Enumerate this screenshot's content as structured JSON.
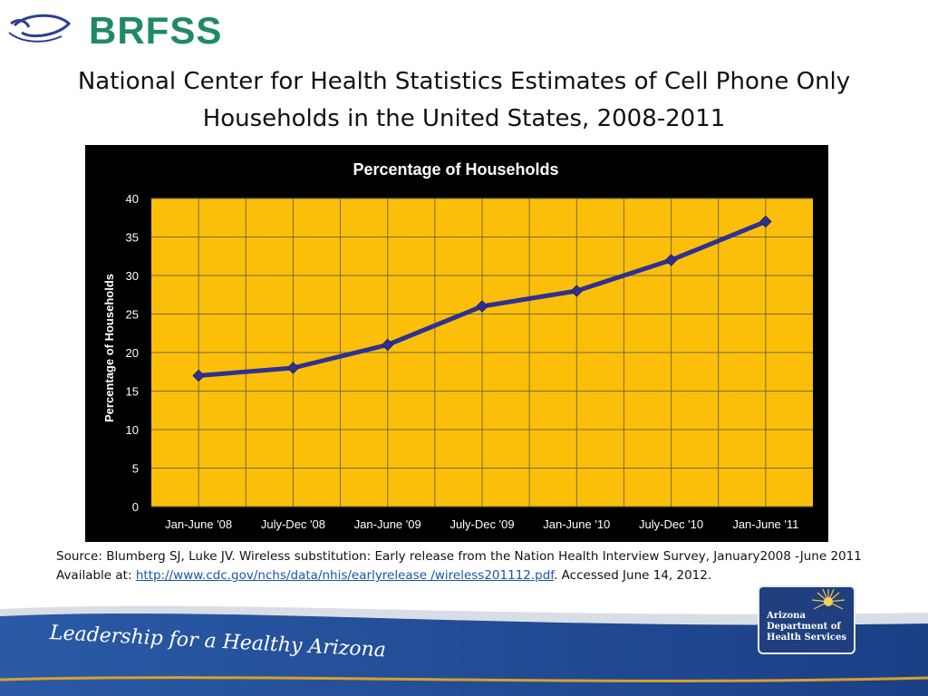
{
  "header": {
    "logo_text": "BRFSS",
    "title_line1": "National Center for Health Statistics Estimates of Cell Phone Only",
    "title_line2": "Households in the United States, 2008-2011"
  },
  "chart_data": {
    "type": "line",
    "title": "Percentage of Households",
    "ylabel": "Percentage of Households",
    "xlabel": "",
    "categories": [
      "Jan-June '08",
      "July-Dec '08",
      "Jan-June '09",
      "July-Dec '09",
      "Jan-June '10",
      "July-Dec '10",
      "Jan-June '11"
    ],
    "series": [
      {
        "values": [
          17,
          18,
          21,
          26,
          28,
          32,
          37
        ]
      }
    ],
    "ylim": [
      0,
      40
    ],
    "yticks": [
      0,
      5,
      10,
      15,
      20,
      25,
      30,
      35,
      40
    ],
    "grid": true,
    "colors": {
      "plot_bg": "#fbbf0a",
      "frame": "#000000",
      "line": "#2e3192",
      "grid": "#7a6a3a",
      "text": "#ffffff"
    }
  },
  "source": {
    "line1": "Source:  Blumberg SJ, Luke JV. Wireless substitution: Early release from the Nation Health Interview Survey, January2008 -June 2011",
    "prefix": "Available at: ",
    "link": "http://www.cdc.gov/nchs/data/nhis/earlyrelease /wireless201112.pdf",
    "suffix": ".  Accessed June 14, 2012."
  },
  "footer": {
    "tagline": "Leadership for a Healthy Arizona",
    "org_line1": "Arizona",
    "org_line2": "Department of",
    "org_line3": "Health Services"
  }
}
